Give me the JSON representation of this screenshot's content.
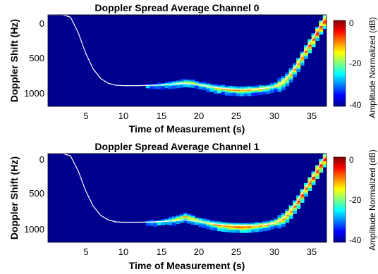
{
  "chart_data": [
    {
      "type": "heatmap",
      "title": "Doppler Spread Average Channel 0",
      "xlabel": "Time of Measurement (s)",
      "ylabel": "Doppler Shift (Hz)",
      "xlim": [
        0,
        37
      ],
      "ylim": [
        0,
        1150
      ],
      "y_reversed": true,
      "xticks": [
        5,
        10,
        15,
        20,
        25,
        30,
        35
      ],
      "yticks": [
        0,
        500,
        1000
      ],
      "colorbar": {
        "label": "Amplitude Normalized (dB)",
        "ticks": [
          0,
          -20,
          -40
        ],
        "range": [
          -40,
          0
        ],
        "colormap": "jet"
      },
      "background_level_db": -40,
      "overlay_line": {
        "color": "#ffffff",
        "x": [
          0,
          2,
          3,
          4,
          5,
          6,
          7,
          8,
          9,
          10,
          12,
          14,
          16,
          18,
          20,
          22,
          24,
          26,
          28,
          30,
          31,
          32,
          33,
          34,
          35,
          36,
          37
        ],
        "y": [
          0,
          0,
          30,
          220,
          480,
          680,
          800,
          860,
          885,
          890,
          890,
          885,
          875,
          860,
          880,
          910,
          930,
          935,
          930,
          905,
          860,
          760,
          630,
          470,
          320,
          160,
          0
        ]
      },
      "energy_band": [
        {
          "x": 13,
          "y": 905,
          "db": -25
        },
        {
          "x": 14,
          "y": 900,
          "db": -22
        },
        {
          "x": 15,
          "y": 895,
          "db": -20
        },
        {
          "x": 16,
          "y": 885,
          "db": -18
        },
        {
          "x": 17,
          "y": 875,
          "db": -15
        },
        {
          "x": 18,
          "y": 860,
          "db": -13
        },
        {
          "x": 19,
          "y": 870,
          "db": -15
        },
        {
          "x": 20,
          "y": 890,
          "db": -16
        },
        {
          "x": 21,
          "y": 910,
          "db": -14
        },
        {
          "x": 22,
          "y": 930,
          "db": -12
        },
        {
          "x": 23,
          "y": 945,
          "db": -10
        },
        {
          "x": 24,
          "y": 955,
          "db": -9
        },
        {
          "x": 25,
          "y": 960,
          "db": -9
        },
        {
          "x": 26,
          "y": 960,
          "db": -9
        },
        {
          "x": 27,
          "y": 955,
          "db": -10
        },
        {
          "x": 28,
          "y": 945,
          "db": -11
        },
        {
          "x": 29,
          "y": 930,
          "db": -12
        },
        {
          "x": 30,
          "y": 905,
          "db": -12
        },
        {
          "x": 31,
          "y": 860,
          "db": -10
        },
        {
          "x": 32,
          "y": 760,
          "db": -8
        },
        {
          "x": 33,
          "y": 630,
          "db": -6
        },
        {
          "x": 34,
          "y": 470,
          "db": -5
        },
        {
          "x": 35,
          "y": 320,
          "db": -4
        },
        {
          "x": 36,
          "y": 160,
          "db": -3
        },
        {
          "x": 37,
          "y": 20,
          "db": -2
        }
      ]
    },
    {
      "type": "heatmap",
      "title": "Doppler Spread Average Channel 1",
      "xlabel": "Time of Measurement (s)",
      "ylabel": "Doppler Shift (Hz)",
      "xlim": [
        0,
        37
      ],
      "ylim": [
        0,
        1150
      ],
      "y_reversed": true,
      "xticks": [
        5,
        10,
        15,
        20,
        25,
        30,
        35
      ],
      "yticks": [
        0,
        500,
        1000
      ],
      "colorbar": {
        "label": "Amplitude Normalized (dB)",
        "ticks": [
          0,
          -20,
          -40
        ],
        "range": [
          -40,
          0
        ],
        "colormap": "jet"
      },
      "background_level_db": -40,
      "overlay_line": {
        "color": "#ffffff",
        "x": [
          0,
          2,
          3,
          4,
          5,
          6,
          7,
          8,
          9,
          10,
          12,
          14,
          16,
          18,
          20,
          22,
          24,
          26,
          28,
          30,
          31,
          32,
          33,
          34,
          35,
          36,
          37
        ],
        "y": [
          0,
          0,
          30,
          220,
          480,
          680,
          800,
          860,
          885,
          890,
          890,
          885,
          875,
          860,
          880,
          910,
          930,
          935,
          930,
          905,
          860,
          760,
          630,
          470,
          320,
          160,
          0
        ]
      },
      "energy_band": [
        {
          "x": 13,
          "y": 905,
          "db": -22
        },
        {
          "x": 14,
          "y": 900,
          "db": -20
        },
        {
          "x": 15,
          "y": 895,
          "db": -18
        },
        {
          "x": 16,
          "y": 880,
          "db": -15
        },
        {
          "x": 17,
          "y": 865,
          "db": -12
        },
        {
          "x": 18,
          "y": 830,
          "db": -10
        },
        {
          "x": 19,
          "y": 860,
          "db": -12
        },
        {
          "x": 20,
          "y": 890,
          "db": -13
        },
        {
          "x": 21,
          "y": 915,
          "db": -11
        },
        {
          "x": 22,
          "y": 935,
          "db": -9
        },
        {
          "x": 23,
          "y": 950,
          "db": -7
        },
        {
          "x": 24,
          "y": 960,
          "db": -6
        },
        {
          "x": 25,
          "y": 965,
          "db": -6
        },
        {
          "x": 26,
          "y": 965,
          "db": -6
        },
        {
          "x": 27,
          "y": 960,
          "db": -7
        },
        {
          "x": 28,
          "y": 950,
          "db": -8
        },
        {
          "x": 29,
          "y": 935,
          "db": -9
        },
        {
          "x": 30,
          "y": 905,
          "db": -9
        },
        {
          "x": 31,
          "y": 860,
          "db": -8
        },
        {
          "x": 32,
          "y": 760,
          "db": -6
        },
        {
          "x": 33,
          "y": 630,
          "db": -5
        },
        {
          "x": 34,
          "y": 470,
          "db": -4
        },
        {
          "x": 35,
          "y": 320,
          "db": -3
        },
        {
          "x": 36,
          "y": 160,
          "db": -2
        },
        {
          "x": 37,
          "y": 20,
          "db": -1
        }
      ]
    }
  ]
}
